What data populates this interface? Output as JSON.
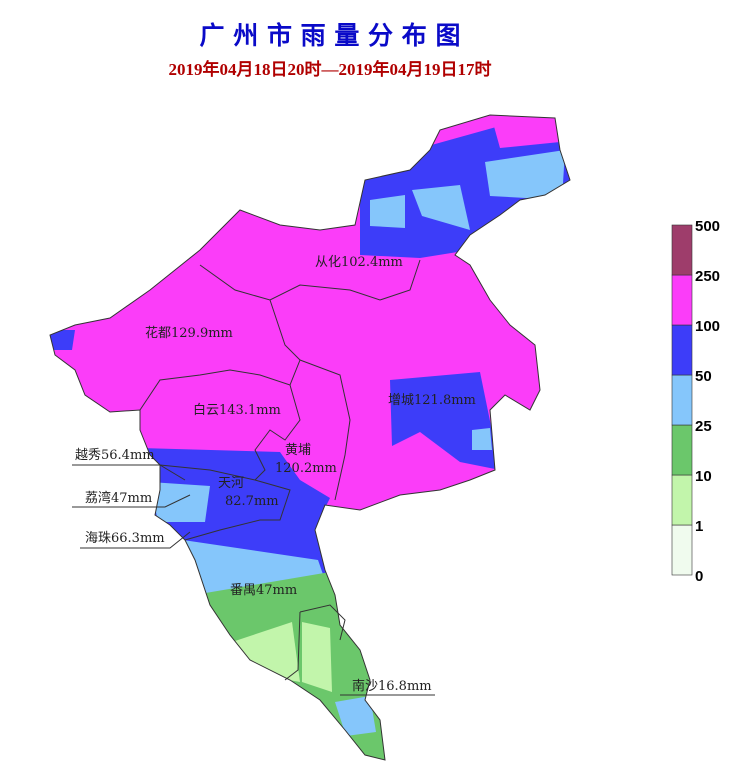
{
  "header": {
    "title": "广 州 市 雨 量 分 布 图",
    "subtitle": "2019年04月18日20时—2019年04月19日17时"
  },
  "districts": [
    {
      "lines": [
        "从化102.4mm"
      ]
    },
    {
      "lines": [
        "花都129.9mm"
      ]
    },
    {
      "lines": [
        "白云143.1mm"
      ]
    },
    {
      "lines": [
        "增城121.8mm"
      ]
    },
    {
      "lines": [
        "黄埔",
        "120.2mm"
      ]
    },
    {
      "lines": [
        "天河",
        "82.7mm"
      ]
    },
    {
      "lines": [
        "越秀56.4mm"
      ]
    },
    {
      "lines": [
        "荔湾47mm"
      ]
    },
    {
      "lines": [
        "海珠66.3mm"
      ]
    },
    {
      "lines": [
        "番禺47mm"
      ]
    },
    {
      "lines": [
        "南沙16.8mm"
      ]
    }
  ],
  "legend": {
    "levels": [
      0,
      1,
      10,
      25,
      50,
      100,
      250,
      500
    ],
    "colors": [
      "#f0fbee",
      "#c2f5ab",
      "#6bc76b",
      "#85c6fb",
      "#3d3df9",
      "#fb3df9",
      "#9e3d6b"
    ]
  }
}
